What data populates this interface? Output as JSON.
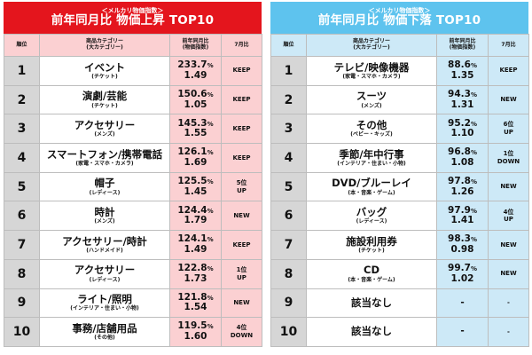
{
  "colors": {
    "rise": "#e4151d",
    "rise_light": "#fbd0d2",
    "fall": "#5ec3ee",
    "fall_light": "#cde9f7",
    "rank_bg": "#d6d6d6"
  },
  "panels": [
    {
      "subtitle": "＜メルカリ物価指数＞",
      "title": "前年同月比 物価上昇 TOP10",
      "headers": {
        "rank": "順位",
        "category": "商品カテゴリー",
        "category_sub": "(大カテゴリー)",
        "yoy": "前年同月比",
        "yoy_sub": "(物価指数)",
        "month": "7月比"
      },
      "rows": [
        {
          "rank": "1",
          "name": "イベント",
          "note": "(チケット)",
          "pct": "233.7",
          "unit": "%",
          "index": "1.49",
          "month": "KEEP"
        },
        {
          "rank": "2",
          "name": "演劇/芸能",
          "note": "(チケット)",
          "pct": "150.6",
          "unit": "%",
          "index": "1.05",
          "month": "KEEP"
        },
        {
          "rank": "3",
          "name": "アクセサリー",
          "note": "(メンズ)",
          "pct": "145.3",
          "unit": "%",
          "index": "1.55",
          "month": "KEEP"
        },
        {
          "rank": "4",
          "name": "スマートフォン/携帯電話",
          "note": "(家電・スマホ・カメラ)",
          "pct": "126.1",
          "unit": "%",
          "index": "1.69",
          "month": "KEEP"
        },
        {
          "rank": "5",
          "name": "帽子",
          "note": "(レディース)",
          "pct": "125.5",
          "unit": "%",
          "index": "1.45",
          "month": "5位\nUP"
        },
        {
          "rank": "6",
          "name": "時計",
          "note": "(メンズ)",
          "pct": "124.4",
          "unit": "%",
          "index": "1.79",
          "month": "NEW"
        },
        {
          "rank": "7",
          "name": "アクセサリー/時計",
          "note": "(ハンドメイド)",
          "pct": "124.1",
          "unit": "%",
          "index": "1.49",
          "month": "KEEP"
        },
        {
          "rank": "8",
          "name": "アクセサリー",
          "note": "(レディース)",
          "pct": "122.8",
          "unit": "%",
          "index": "1.73",
          "month": "1位\nUP"
        },
        {
          "rank": "9",
          "name": "ライト/照明",
          "note": "(インテリア・住まい・小物)",
          "pct": "121.8",
          "unit": "%",
          "index": "1.54",
          "month": "NEW"
        },
        {
          "rank": "10",
          "name": "事務/店舗用品",
          "note": "(その他)",
          "pct": "119.5",
          "unit": "%",
          "index": "1.60",
          "month": "4位\nDOWN"
        }
      ]
    },
    {
      "subtitle": "＜メルカリ物価指数＞",
      "title": "前年同月比 物価下落 TOP10",
      "headers": {
        "rank": "順位",
        "category": "商品カテゴリー",
        "category_sub": "(大カテゴリー)",
        "yoy": "前年同月比",
        "yoy_sub": "(物価指数)",
        "month": "7月比"
      },
      "rows": [
        {
          "rank": "1",
          "name": "テレビ/映像機器",
          "note": "(家電・スマホ・カメラ)",
          "pct": "88.6",
          "unit": "%",
          "index": "1.35",
          "month": "KEEP"
        },
        {
          "rank": "2",
          "name": "スーツ",
          "note": "(メンズ)",
          "pct": "94.3",
          "unit": "%",
          "index": "1.31",
          "month": "NEW"
        },
        {
          "rank": "3",
          "name": "その他",
          "note": "(ベビー・キッズ)",
          "pct": "95.2",
          "unit": "%",
          "index": "1.10",
          "month": "6位\nUP"
        },
        {
          "rank": "4",
          "name": "季節/年中行事",
          "note": "(インテリア・住まい・小物)",
          "pct": "96.8",
          "unit": "%",
          "index": "1.08",
          "month": "1位\nDOWN"
        },
        {
          "rank": "5",
          "name": "DVD/ブルーレイ",
          "note": "(本・音楽・ゲーム)",
          "pct": "97.8",
          "unit": "%",
          "index": "1.26",
          "month": "NEW"
        },
        {
          "rank": "6",
          "name": "バッグ",
          "note": "(レディース)",
          "pct": "97.9",
          "unit": "%",
          "index": "1.41",
          "month": "4位\nUP"
        },
        {
          "rank": "7",
          "name": "施設利用券",
          "note": "(チケット)",
          "pct": "98.3",
          "unit": "%",
          "index": "0.98",
          "month": "NEW"
        },
        {
          "rank": "8",
          "name": "CD",
          "note": "(本・音楽・ゲーム)",
          "pct": "99.7",
          "unit": "%",
          "index": "1.02",
          "month": "NEW"
        },
        {
          "rank": "9",
          "name": "該当なし",
          "note": "",
          "pct": "-",
          "unit": "",
          "index": "",
          "month": "-"
        },
        {
          "rank": "10",
          "name": "該当なし",
          "note": "",
          "pct": "-",
          "unit": "",
          "index": "",
          "month": "-"
        }
      ]
    }
  ]
}
